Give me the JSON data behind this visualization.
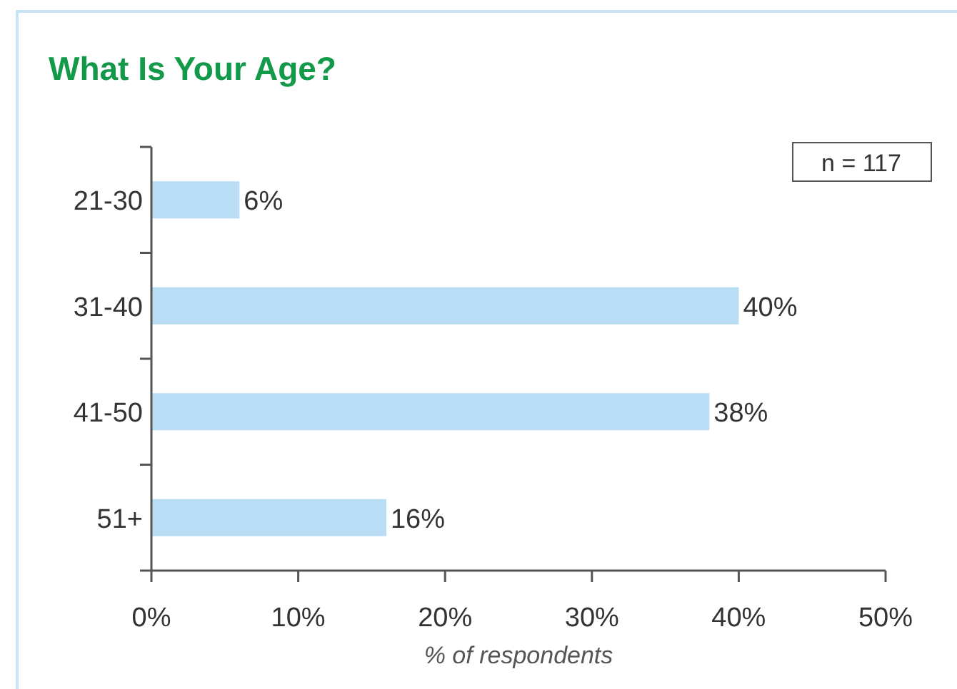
{
  "chart_data": {
    "type": "bar",
    "orientation": "horizontal",
    "title": "What Is Your Age?",
    "xlabel": "% of respondents",
    "categories": [
      "21-30",
      "31-40",
      "41-50",
      "51+"
    ],
    "values": [
      6,
      40,
      38,
      16
    ],
    "color": "#b9ddf5",
    "value_labels": [
      "6%",
      "40%",
      "38%",
      "16%"
    ],
    "xlim": [
      0,
      50
    ],
    "xticks": [
      {
        "value": 0,
        "label": "0%"
      },
      {
        "value": 10,
        "label": "10%"
      },
      {
        "value": 20,
        "label": "20%"
      },
      {
        "value": 30,
        "label": "30%"
      },
      {
        "value": 40,
        "label": "40%"
      },
      {
        "value": 50,
        "label": "50%"
      }
    ],
    "annotations": [
      "n = 117"
    ]
  }
}
